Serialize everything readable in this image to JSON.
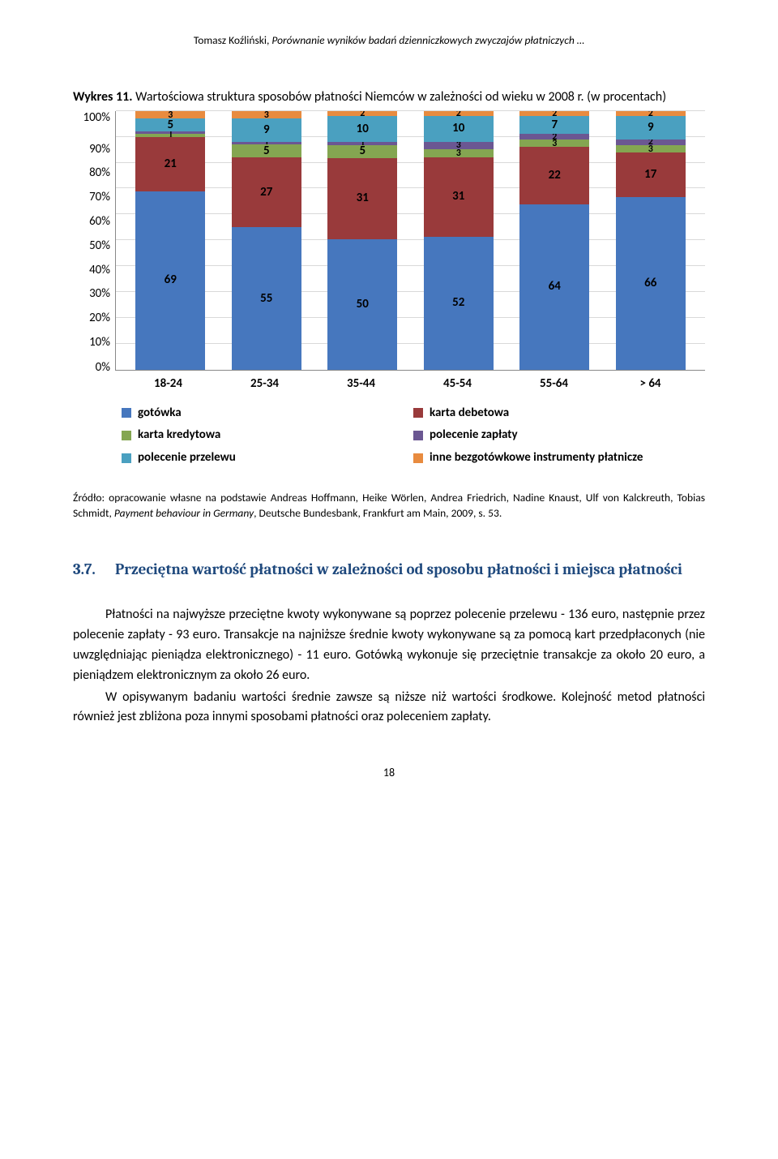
{
  "running_head": {
    "author": "Tomasz Koźliński, ",
    "title_italic": "Porównanie wyników badań dzienniczkowych zwyczajów płatniczych …"
  },
  "figure": {
    "caption_bold": "Wykres 11.",
    "caption_rest": " Wartościowa struktura sposobów płatności Niemców w zależności od wieku w 2008 r. (w procentach)",
    "y_ticks": [
      "100%",
      "90%",
      "80%",
      "70%",
      "60%",
      "50%",
      "40%",
      "30%",
      "20%",
      "10%",
      "0%"
    ],
    "grid_pct": [
      10,
      20,
      30,
      40,
      50,
      60,
      70,
      80,
      90,
      100
    ],
    "categories": [
      "18-24",
      "25-34",
      "35-44",
      "45-54",
      "55-64",
      "> 64"
    ],
    "series": [
      {
        "key": "gotowka",
        "label": "gotówka",
        "color": "#4677be"
      },
      {
        "key": "debet",
        "label": "karta debetowa",
        "color": "#993a3b"
      },
      {
        "key": "kredyt",
        "label": "karta kredytowa",
        "color": "#84a651"
      },
      {
        "key": "zaplata",
        "label": "polecenie zapłaty",
        "color": "#6b5792"
      },
      {
        "key": "przelew",
        "label": "polecenie przelewu",
        "color": "#4aa0c0"
      },
      {
        "key": "inne",
        "label": "inne bezgotówkowe instrumenty płatnicze",
        "color": "#e88b3f"
      }
    ],
    "stacks": [
      {
        "gotowka": 69,
        "debet": 21,
        "kredyt": 1,
        "zaplata": 1,
        "przelew": 5,
        "inne": 3
      },
      {
        "gotowka": 55,
        "debet": 27,
        "kredyt": 5,
        "zaplata": 1,
        "przelew": 9,
        "inne": 3
      },
      {
        "gotowka": 50,
        "debet": 31,
        "kredyt": 5,
        "zaplata": 1,
        "przelew": 10,
        "inne": 2
      },
      {
        "gotowka": 52,
        "debet": 31,
        "kredyt": 3,
        "zaplata": 3,
        "przelew": 10,
        "inne": 2
      },
      {
        "gotowka": 64,
        "debet": 22,
        "kredyt": 3,
        "zaplata": 2,
        "przelew": 7,
        "inne": 2
      },
      {
        "gotowka": 66,
        "debet": 17,
        "kredyt": 3,
        "zaplata": 2,
        "przelew": 9,
        "inne": 2
      }
    ],
    "legend_order": [
      "gotowka",
      "debet",
      "kredyt",
      "zaplata",
      "przelew",
      "inne"
    ]
  },
  "source": "Źródło: opracowanie własne na podstawie Andreas Hoffmann, Heike Wörlen, Andrea Friedrich, Nadine Knaust, Ulf von Kalckreuth, Tobias Schmidt, Payment behaviour in Germany, Deutsche Bundesbank, Frankfurt am Main, 2009, s. 53.",
  "source_italic_span": "Payment behaviour in Germany",
  "section": {
    "number": "3.7.",
    "title": "Przeciętna wartość płatności w zależności od sposobu płatności i miejsca płatności"
  },
  "paragraphs": [
    "Płatności na najwyższe przeciętne kwoty wykonywane są poprzez polecenie przelewu - 136 euro, następnie przez polecenie zapłaty - 93 euro. Transakcje na najniższe średnie kwoty wykonywane są za pomocą kart przedpłaconych (nie uwzględniając pieniądza elektronicznego) - 11 euro. Gotówką wykonuje się przeciętnie transakcje za około 20 euro, a pieniądzem elektronicznym za około 26 euro.",
    "W opisywanym badaniu wartości średnie zawsze są niższe niż wartości środkowe. Kolejność metod płatności również jest zbliżona poza innymi sposobami płatności oraz poleceniem zapłaty."
  ],
  "page_number": "18"
}
